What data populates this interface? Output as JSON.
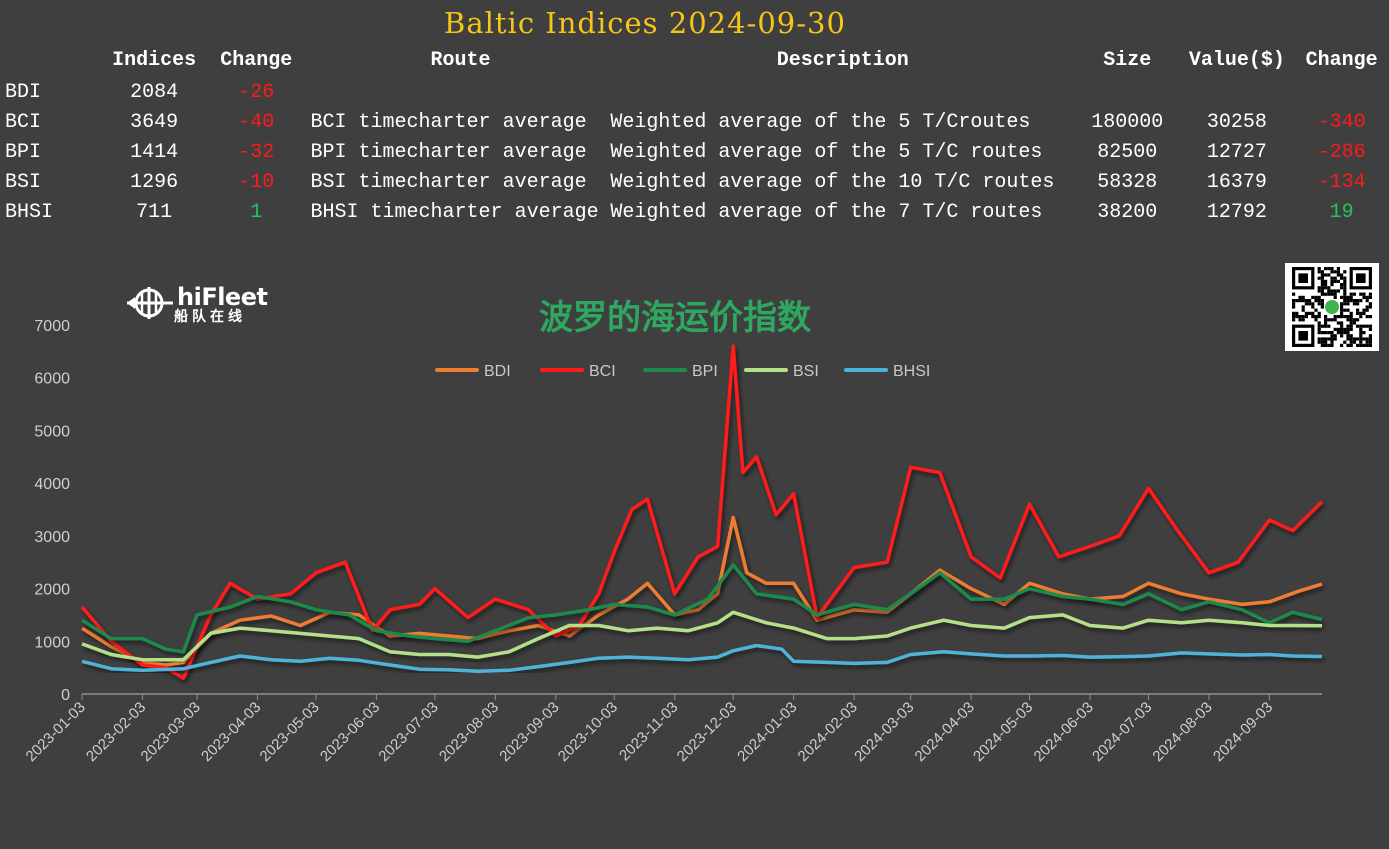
{
  "title": "Baltic Indices 2024-09-30",
  "table": {
    "headers": {
      "name": "",
      "indices": "Indices",
      "change": "Change",
      "route": "Route",
      "description": "Description",
      "size": "Size",
      "value": "Value($)",
      "change2": "Change"
    },
    "rows": [
      {
        "name": "BDI",
        "index": "2084",
        "change": "-26",
        "change_sign": "neg",
        "route": "",
        "description": "",
        "size": "",
        "value": "",
        "change2": "",
        "change2_sign": ""
      },
      {
        "name": "BCI",
        "index": "3649",
        "change": "-40",
        "change_sign": "neg",
        "route": "BCI timecharter average",
        "description": "Weighted average of the 5 T/Croutes",
        "size": "180000",
        "value": "30258",
        "change2": "-340",
        "change2_sign": "neg"
      },
      {
        "name": "BPI",
        "index": "1414",
        "change": "-32",
        "change_sign": "neg",
        "route": "BPI timecharter average",
        "description": "Weighted average of the 5 T/C routes",
        "size": "82500",
        "value": "12727",
        "change2": "-286",
        "change2_sign": "neg"
      },
      {
        "name": "BSI",
        "index": "1296",
        "change": "-10",
        "change_sign": "neg",
        "route": "BSI timecharter average",
        "description": "Weighted average of the 10 T/C routes",
        "size": "58328",
        "value": "16379",
        "change2": "-134",
        "change2_sign": "neg"
      },
      {
        "name": "BHSI",
        "index": "711",
        "change": "1",
        "change_sign": "pos",
        "route": "BHSI timecharter average",
        "description": "Weighted average of the 7 T/C routes",
        "size": "38200",
        "value": "12792",
        "change2": "19",
        "change2_sign": "pos"
      }
    ]
  },
  "logo": {
    "main": "hiFleet",
    "sub": "船队在线",
    "icon": "hifleet-logo-icon"
  },
  "qr_icon": "qr-code-icon",
  "chart_data": {
    "type": "line",
    "title": "波罗的海运价指数",
    "xlabel": "",
    "ylabel": "",
    "ylim": [
      0,
      7000
    ],
    "yticks": [
      0,
      1000,
      2000,
      3000,
      4000,
      5000,
      6000,
      7000
    ],
    "xlim": [
      "2023-01-03",
      "2024-09-30"
    ],
    "x_tick_labels": [
      "2023-01-03",
      "2023-02-03",
      "2023-03-03",
      "2023-04-03",
      "2023-05-03",
      "2023-06-03",
      "2023-07-03",
      "2023-08-03",
      "2023-09-03",
      "2023-10-03",
      "2023-11-03",
      "2023-12-03",
      "2024-01-03",
      "2024-02-03",
      "2024-03-03",
      "2024-04-03",
      "2024-05-03",
      "2024-06-03",
      "2024-07-03",
      "2024-08-03",
      "2024-09-03"
    ],
    "grid": false,
    "legend_position": "top-center",
    "series": [
      {
        "name": "BDI",
        "color": "#ed7d31",
        "x": [
          "2023-01-03",
          "2023-01-18",
          "2023-02-03",
          "2023-02-15",
          "2023-02-24",
          "2023-03-10",
          "2023-03-25",
          "2023-04-10",
          "2023-04-25",
          "2023-05-10",
          "2023-05-25",
          "2023-06-10",
          "2023-06-25",
          "2023-07-10",
          "2023-07-25",
          "2023-08-10",
          "2023-08-25",
          "2023-09-10",
          "2023-09-25",
          "2023-10-10",
          "2023-10-20",
          "2023-11-03",
          "2023-11-15",
          "2023-11-25",
          "2023-12-03",
          "2023-12-10",
          "2023-12-20",
          "2024-01-03",
          "2024-01-15",
          "2024-02-03",
          "2024-02-20",
          "2024-03-03",
          "2024-03-18",
          "2024-04-03",
          "2024-04-20",
          "2024-05-03",
          "2024-05-20",
          "2024-06-03",
          "2024-06-20",
          "2024-07-03",
          "2024-07-20",
          "2024-08-03",
          "2024-08-20",
          "2024-09-03",
          "2024-09-18",
          "2024-09-30"
        ],
        "values": [
          1250,
          900,
          600,
          550,
          600,
          1150,
          1400,
          1480,
          1300,
          1550,
          1500,
          1100,
          1150,
          1100,
          1050,
          1200,
          1300,
          1100,
          1500,
          1800,
          2100,
          1500,
          1600,
          1900,
          3350,
          2300,
          2100,
          2100,
          1400,
          1600,
          1550,
          1900,
          2350,
          2000,
          1700,
          2100,
          1900,
          1800,
          1850,
          2100,
          1900,
          1800,
          1700,
          1750,
          1950,
          2084
        ]
      },
      {
        "name": "BCI",
        "color": "#ff1a1a",
        "x": [
          "2023-01-03",
          "2023-01-18",
          "2023-02-03",
          "2023-02-15",
          "2023-02-24",
          "2023-03-10",
          "2023-03-20",
          "2023-04-03",
          "2023-04-20",
          "2023-05-03",
          "2023-05-18",
          "2023-06-01",
          "2023-06-10",
          "2023-06-25",
          "2023-07-03",
          "2023-07-20",
          "2023-08-03",
          "2023-08-20",
          "2023-09-03",
          "2023-09-15",
          "2023-09-25",
          "2023-10-03",
          "2023-10-12",
          "2023-10-20",
          "2023-11-03",
          "2023-11-15",
          "2023-11-25",
          "2023-12-03",
          "2023-12-08",
          "2023-12-15",
          "2023-12-25",
          "2024-01-03",
          "2024-01-15",
          "2024-02-03",
          "2024-02-20",
          "2024-03-03",
          "2024-03-18",
          "2024-04-03",
          "2024-04-18",
          "2024-05-03",
          "2024-05-18",
          "2024-06-03",
          "2024-06-18",
          "2024-07-03",
          "2024-07-18",
          "2024-08-03",
          "2024-08-18",
          "2024-09-03",
          "2024-09-15",
          "2024-09-30"
        ],
        "values": [
          1650,
          1000,
          550,
          500,
          300,
          1500,
          2100,
          1800,
          1900,
          2300,
          2500,
          1200,
          1600,
          1700,
          2000,
          1450,
          1800,
          1600,
          1100,
          1300,
          1900,
          2700,
          3500,
          3700,
          1900,
          2600,
          2800,
          6600,
          4200,
          4500,
          3400,
          3800,
          1450,
          2400,
          2500,
          4300,
          4200,
          2600,
          2200,
          3600,
          2600,
          2800,
          3000,
          3900,
          3100,
          2300,
          2500,
          3300,
          3100,
          3649
        ]
      },
      {
        "name": "BPI",
        "color": "#1f8a4c",
        "x": [
          "2023-01-03",
          "2023-01-18",
          "2023-02-03",
          "2023-02-15",
          "2023-02-24",
          "2023-03-03",
          "2023-03-20",
          "2023-04-03",
          "2023-04-20",
          "2023-05-03",
          "2023-05-20",
          "2023-06-03",
          "2023-06-20",
          "2023-07-03",
          "2023-07-20",
          "2023-08-03",
          "2023-08-20",
          "2023-09-03",
          "2023-09-20",
          "2023-10-03",
          "2023-10-20",
          "2023-11-03",
          "2023-11-20",
          "2023-12-03",
          "2023-12-15",
          "2024-01-03",
          "2024-01-15",
          "2024-02-03",
          "2024-02-20",
          "2024-03-03",
          "2024-03-18",
          "2024-04-03",
          "2024-04-20",
          "2024-05-03",
          "2024-05-20",
          "2024-06-03",
          "2024-06-20",
          "2024-07-03",
          "2024-07-20",
          "2024-08-03",
          "2024-08-20",
          "2024-09-03",
          "2024-09-15",
          "2024-09-30"
        ],
        "values": [
          1400,
          1050,
          1050,
          850,
          800,
          1500,
          1650,
          1850,
          1750,
          1600,
          1500,
          1200,
          1100,
          1050,
          1000,
          1200,
          1450,
          1500,
          1600,
          1700,
          1650,
          1500,
          1800,
          2450,
          1900,
          1800,
          1500,
          1700,
          1600,
          1900,
          2300,
          1800,
          1800,
          2000,
          1850,
          1800,
          1700,
          1900,
          1600,
          1750,
          1600,
          1350,
          1550,
          1414
        ]
      },
      {
        "name": "BSI",
        "color": "#b5e08a",
        "x": [
          "2023-01-03",
          "2023-01-18",
          "2023-02-03",
          "2023-02-24",
          "2023-03-10",
          "2023-03-25",
          "2023-04-10",
          "2023-04-25",
          "2023-05-10",
          "2023-05-25",
          "2023-06-10",
          "2023-06-25",
          "2023-07-10",
          "2023-07-25",
          "2023-08-10",
          "2023-08-25",
          "2023-09-10",
          "2023-09-25",
          "2023-10-10",
          "2023-10-25",
          "2023-11-10",
          "2023-11-25",
          "2023-12-03",
          "2023-12-20",
          "2024-01-03",
          "2024-01-20",
          "2024-02-03",
          "2024-02-20",
          "2024-03-03",
          "2024-03-20",
          "2024-04-03",
          "2024-04-20",
          "2024-05-03",
          "2024-05-20",
          "2024-06-03",
          "2024-06-20",
          "2024-07-03",
          "2024-07-20",
          "2024-08-03",
          "2024-08-20",
          "2024-09-03",
          "2024-09-15",
          "2024-09-30"
        ],
        "values": [
          950,
          750,
          650,
          650,
          1150,
          1250,
          1200,
          1150,
          1100,
          1050,
          800,
          750,
          750,
          700,
          800,
          1050,
          1300,
          1300,
          1200,
          1250,
          1200,
          1350,
          1550,
          1350,
          1250,
          1050,
          1050,
          1100,
          1250,
          1400,
          1300,
          1250,
          1450,
          1500,
          1300,
          1250,
          1400,
          1350,
          1400,
          1350,
          1300,
          1300,
          1296
        ]
      },
      {
        "name": "BHSI",
        "color": "#4fb3d9",
        "x": [
          "2023-01-03",
          "2023-01-18",
          "2023-02-03",
          "2023-02-24",
          "2023-03-10",
          "2023-03-25",
          "2023-04-10",
          "2023-04-25",
          "2023-05-10",
          "2023-05-25",
          "2023-06-10",
          "2023-06-25",
          "2023-07-10",
          "2023-07-25",
          "2023-08-10",
          "2023-08-25",
          "2023-09-10",
          "2023-09-25",
          "2023-10-10",
          "2023-10-25",
          "2023-11-10",
          "2023-11-25",
          "2023-12-03",
          "2023-12-15",
          "2023-12-28",
          "2024-01-03",
          "2024-01-20",
          "2024-02-03",
          "2024-02-20",
          "2024-03-03",
          "2024-03-20",
          "2024-04-03",
          "2024-04-20",
          "2024-05-03",
          "2024-05-20",
          "2024-06-03",
          "2024-06-20",
          "2024-07-03",
          "2024-07-20",
          "2024-08-03",
          "2024-08-20",
          "2024-09-03",
          "2024-09-15",
          "2024-09-30"
        ],
        "values": [
          620,
          480,
          450,
          480,
          600,
          720,
          650,
          620,
          680,
          640,
          550,
          470,
          460,
          430,
          450,
          520,
          600,
          680,
          700,
          680,
          650,
          700,
          820,
          920,
          850,
          620,
          600,
          580,
          600,
          750,
          800,
          760,
          720,
          720,
          730,
          700,
          710,
          720,
          780,
          760,
          740,
          750,
          720,
          711
        ]
      }
    ]
  }
}
